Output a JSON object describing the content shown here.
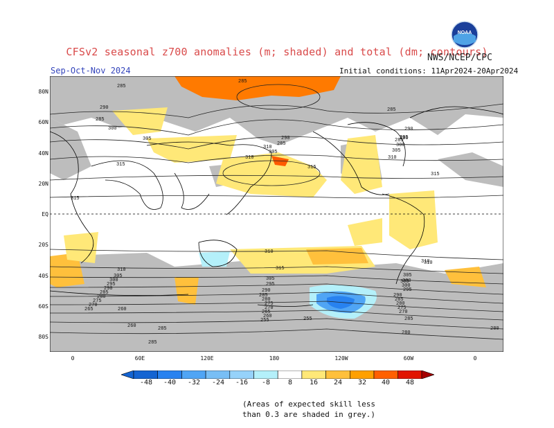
{
  "title": "CFSv2 seasonal z700 anomalies (m; shaded) and total (dm; contours)",
  "agency": "NWS/NCEP/CPC",
  "period": "Sep-Oct-Nov 2024",
  "initial_conditions": "Initial conditions: 11Apr2024-20Apr2024",
  "logo_text": "NOAA",
  "latitude_labels": [
    "80N",
    "60N",
    "40N",
    "20N",
    "EQ",
    "20S",
    "40S",
    "60S",
    "80S"
  ],
  "longitude_labels": [
    "0",
    "60E",
    "120E",
    "180",
    "120W",
    "60W",
    "0"
  ],
  "colorbar": {
    "ticks": [
      "-48",
      "-40",
      "-32",
      "-24",
      "-16",
      "-8",
      "8",
      "16",
      "24",
      "32",
      "40",
      "48"
    ],
    "colors": [
      "#1464d2",
      "#2882f0",
      "#50a5f5",
      "#78bef5",
      "#96d2fa",
      "#b4f0fa",
      "#ffffff",
      "#ffe878",
      "#ffc03c",
      "#ffa000",
      "#ff6000",
      "#e11400",
      "#a50000"
    ]
  },
  "contour_labels": [
    "285",
    "285",
    "290",
    "285",
    "300",
    "305",
    "315",
    "315",
    "290",
    "285",
    "310",
    "305",
    "310",
    "300",
    "305",
    "310",
    "315",
    "315",
    "310",
    "285",
    "290",
    "285",
    "290",
    "295",
    "300",
    "305",
    "310",
    "315",
    "310",
    "305",
    "300",
    "295",
    "290",
    "285",
    "280",
    "275",
    "270",
    "265",
    "260",
    "255",
    "260",
    "280",
    "285",
    "305",
    "295",
    "290",
    "285",
    "280",
    "275",
    "270",
    "265",
    "260",
    "255",
    "310",
    "305",
    "300",
    "295",
    "290",
    "285",
    "280",
    "275",
    "270",
    "280",
    "285",
    "285"
  ],
  "skill_note": [
    "(Areas of expected skill less",
    "than 0.3 are shaded in grey.)"
  ]
}
